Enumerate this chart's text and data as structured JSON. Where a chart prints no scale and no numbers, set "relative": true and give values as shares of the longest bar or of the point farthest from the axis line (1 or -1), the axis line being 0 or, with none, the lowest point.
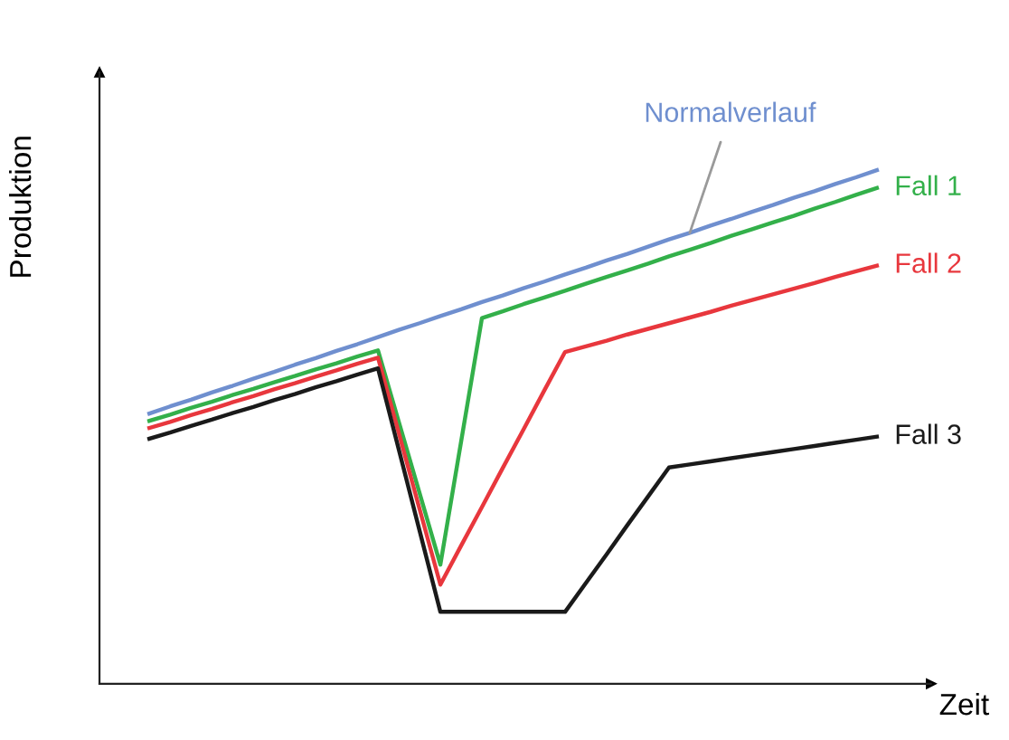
{
  "chart_data": {
    "type": "line",
    "xlabel": "Zeit",
    "ylabel": "Produktion",
    "relative": true,
    "legend": false,
    "marker": "none",
    "line_style": "solid",
    "categories": [
      null,
      null,
      null,
      null,
      null,
      null,
      null,
      null,
      null,
      null,
      null,
      null,
      null,
      null,
      null,
      null,
      null,
      null,
      null,
      null,
      null,
      null,
      null,
      null,
      null,
      null,
      null,
      null,
      null,
      null,
      null,
      null,
      null,
      null,
      null,
      null
    ],
    "series": [
      {
        "name": "Normalverlauf",
        "color": "#6f8fcf",
        "values": [
          0.526,
          0.54,
          0.553,
          0.567,
          0.58,
          0.594,
          0.607,
          0.621,
          0.634,
          0.648,
          0.661,
          0.675,
          0.689,
          0.702,
          0.716,
          0.729,
          0.743,
          0.756,
          0.77,
          0.783,
          0.797,
          0.81,
          0.824,
          0.837,
          0.851,
          0.865,
          0.878,
          0.892,
          0.905,
          0.919,
          0.932,
          0.946,
          0.959,
          0.973,
          0.986,
          1.0
        ]
      },
      {
        "name": "Fall 1",
        "color": "#33b04a",
        "values": [
          0.512,
          0.524,
          0.537,
          0.549,
          0.562,
          0.574,
          0.587,
          0.599,
          0.612,
          0.624,
          0.637,
          0.649,
          0.51,
          0.371,
          0.232,
          0.472,
          0.712,
          0.725,
          0.739,
          0.752,
          0.765,
          0.779,
          0.792,
          0.805,
          0.818,
          0.832,
          0.845,
          0.858,
          0.872,
          0.885,
          0.898,
          0.911,
          0.925,
          0.938,
          0.952,
          0.965
        ]
      },
      {
        "name": "Fall 2",
        "color": "#e8373d",
        "values": [
          0.498,
          0.51,
          0.523,
          0.535,
          0.548,
          0.56,
          0.573,
          0.585,
          0.598,
          0.61,
          0.623,
          0.635,
          0.488,
          0.34,
          0.193,
          0.269,
          0.344,
          0.42,
          0.495,
          0.571,
          0.646,
          0.657,
          0.668,
          0.68,
          0.691,
          0.702,
          0.713,
          0.724,
          0.736,
          0.747,
          0.758,
          0.769,
          0.78,
          0.792,
          0.803,
          0.814
        ]
      },
      {
        "name": "Fall 3",
        "color": "#1a1a1a",
        "values": [
          0.477,
          0.489,
          0.502,
          0.514,
          0.527,
          0.539,
          0.552,
          0.564,
          0.577,
          0.589,
          0.602,
          0.614,
          0.456,
          0.298,
          0.14,
          0.14,
          0.14,
          0.14,
          0.14,
          0.14,
          0.14,
          0.196,
          0.252,
          0.309,
          0.365,
          0.421,
          0.427,
          0.433,
          0.439,
          0.445,
          0.451,
          0.457,
          0.463,
          0.469,
          0.475,
          0.481
        ]
      }
    ]
  }
}
